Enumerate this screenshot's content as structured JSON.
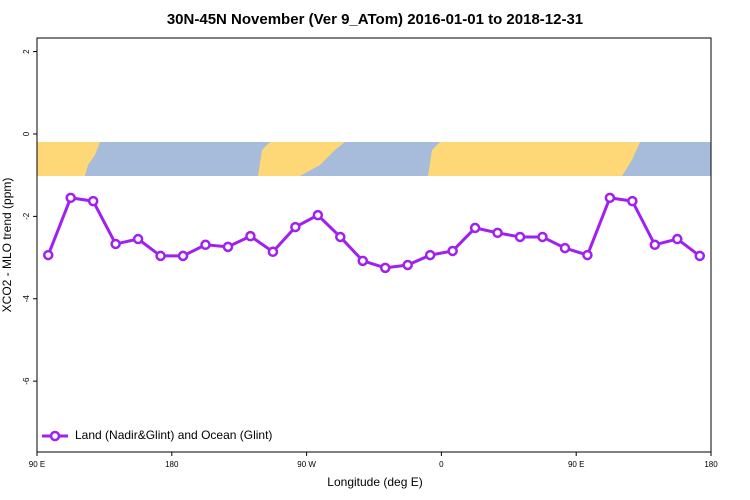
{
  "chart_data": {
    "type": "line",
    "title": "30N-45N November (Ver 9_ATom)   2016-01-01 to 2018-12-31",
    "x_label": "Longitude (deg E)",
    "y_label": "XCO2 - MLO trend (ppm)",
    "x": [
      97.5,
      112.5,
      127.5,
      142.5,
      157.5,
      172.5,
      187.5,
      202.5,
      217.5,
      232.5,
      247.5,
      262.5,
      277.5,
      292.5,
      307.5,
      322.5,
      337.5,
      352.5,
      367.5,
      382.5,
      397.5,
      412.5,
      427.5,
      442.5,
      457.5,
      472.5,
      487.5,
      502.5,
      517.5,
      532.5
    ],
    "series": [
      {
        "name": "Land (Nadir&Glint) and Ocean (Glint)",
        "color": "#a020f0",
        "values": [
          -2.94,
          -1.55,
          -1.63,
          -2.67,
          -2.55,
          -2.96,
          -2.96,
          -2.69,
          -2.74,
          -2.48,
          -2.86,
          -2.26,
          -1.97,
          -2.5,
          -3.08,
          -3.25,
          -3.18,
          -2.94,
          -2.84,
          -2.28,
          -2.4,
          -2.5,
          -2.5,
          -2.77,
          -2.94,
          -1.55,
          -1.63,
          -2.69,
          -2.55,
          -2.96
        ]
      }
    ],
    "xlim": [
      90,
      540
    ],
    "xticks": [
      {
        "value": 90,
        "label": "90 E"
      },
      {
        "value": 180,
        "label": "180"
      },
      {
        "value": 270,
        "label": "90 W"
      },
      {
        "value": 360,
        "label": "0"
      },
      {
        "value": 450,
        "label": "90 E"
      },
      {
        "value": 540,
        "label": "180"
      }
    ],
    "ylim": [
      -7.72,
      2.33
    ],
    "yticks": [
      2,
      0,
      -2,
      -4,
      -6
    ],
    "legend": "bottom-left"
  }
}
